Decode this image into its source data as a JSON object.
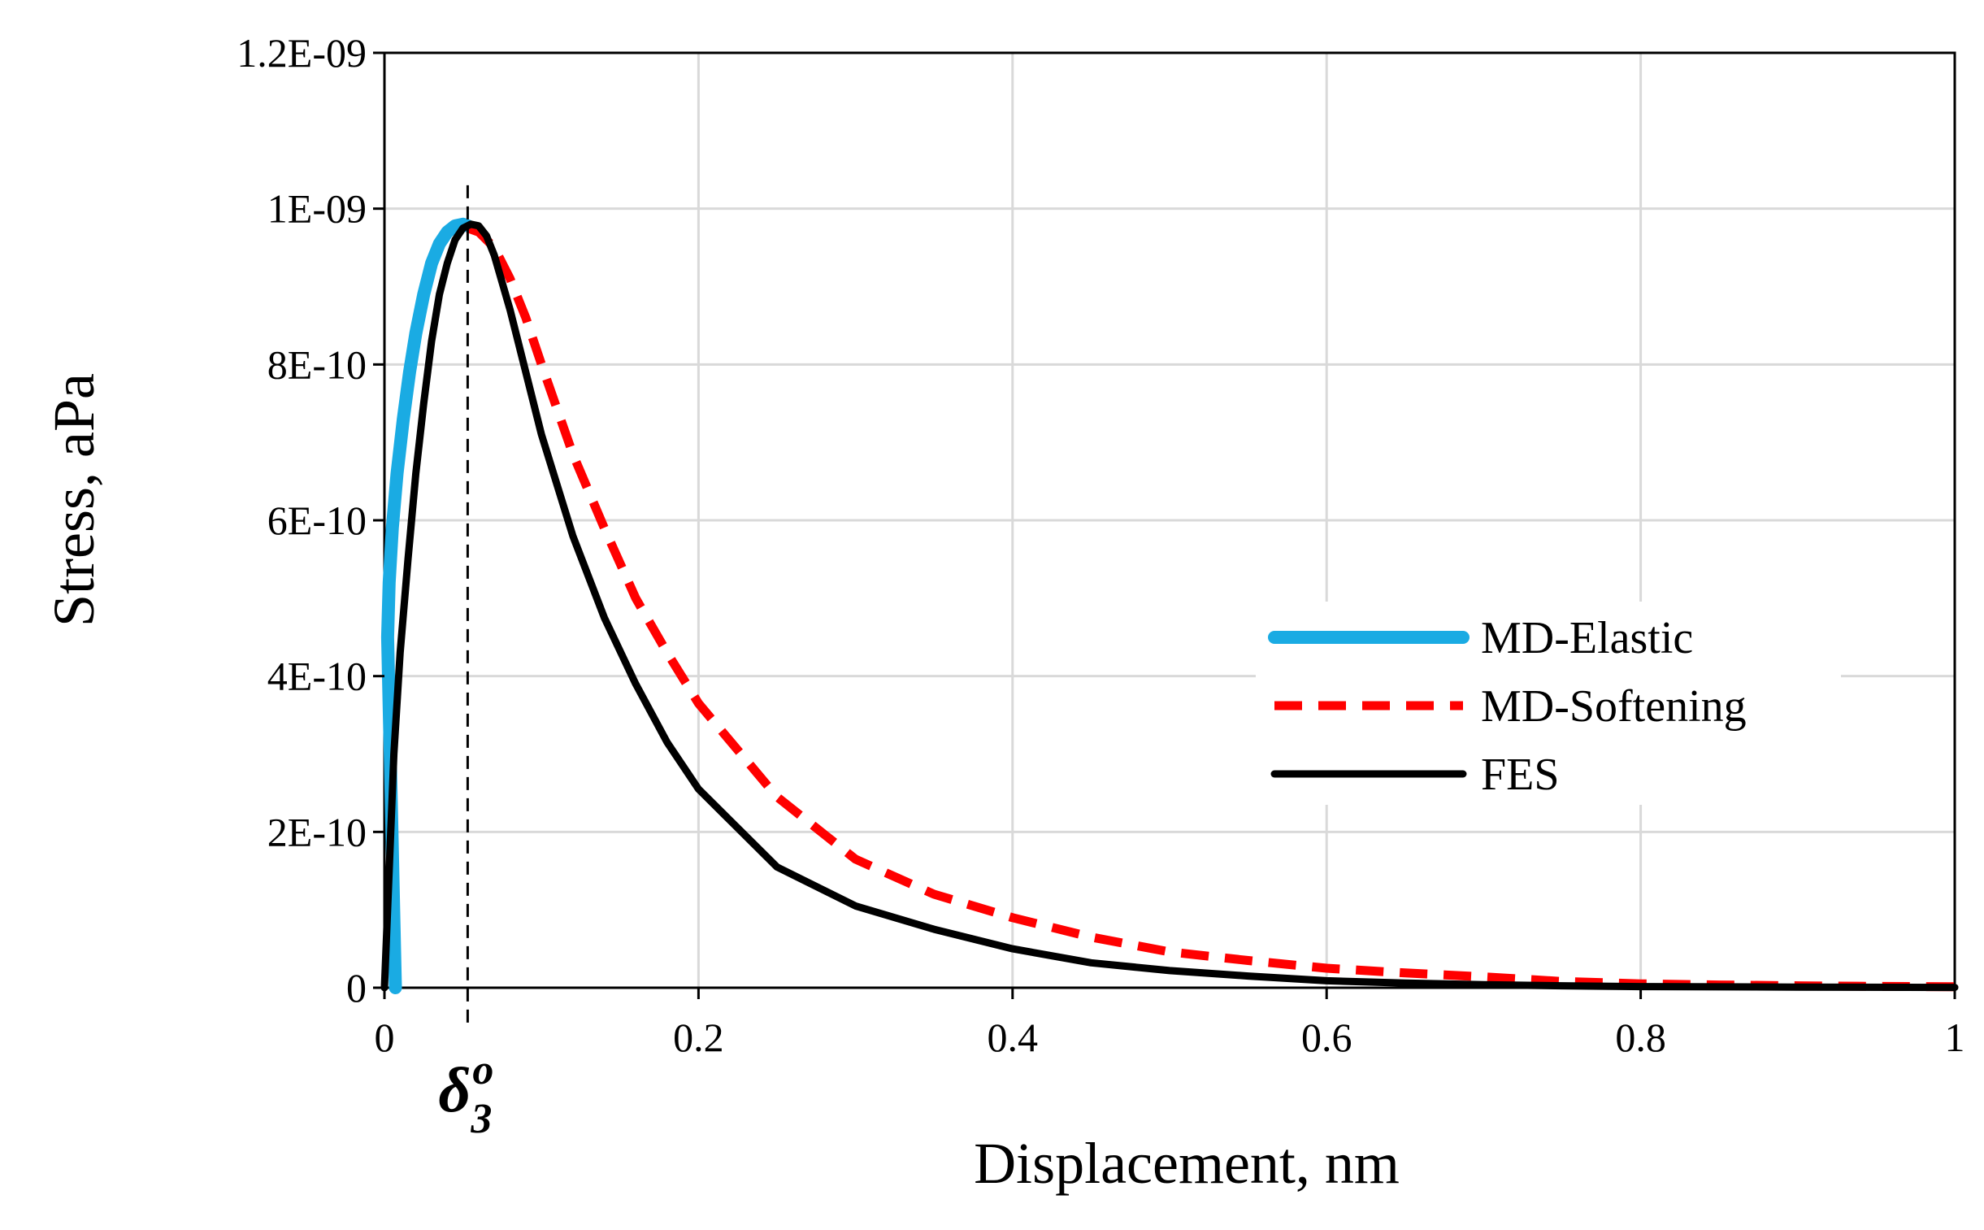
{
  "chart_data": {
    "type": "line",
    "title": "",
    "xlabel": "Displacement, nm",
    "ylabel": "Stress, aPa",
    "xlim": [
      0,
      1
    ],
    "ylim": [
      0,
      1.2e-09
    ],
    "grid": true,
    "legend_position": "right-middle",
    "x_ticks": [
      {
        "value": 0,
        "label": "0"
      },
      {
        "value": 0.2,
        "label": "0.2"
      },
      {
        "value": 0.4,
        "label": "0.4"
      },
      {
        "value": 0.6,
        "label": "0.6"
      },
      {
        "value": 0.8,
        "label": "0.8"
      },
      {
        "value": 1,
        "label": "1"
      }
    ],
    "y_ticks": [
      {
        "value": 0,
        "label": "0"
      },
      {
        "value": 2e-10,
        "label": "2E-10"
      },
      {
        "value": 4e-10,
        "label": "4E-10"
      },
      {
        "value": 6e-10,
        "label": "6E-10"
      },
      {
        "value": 8e-10,
        "label": "8E-10"
      },
      {
        "value": 1e-09,
        "label": "1E-09"
      },
      {
        "value": 1.2e-09,
        "label": "1.2E-09"
      }
    ],
    "annotation": {
      "x": 0.053,
      "label_base": "δ",
      "label_sub": "3",
      "label_sup": "o",
      "style": "dashed vertical line"
    },
    "series": [
      {
        "name": "MD-Elastic",
        "color": "#1aabe3",
        "style": "solid-thick",
        "x": [
          0.007,
          0.002,
          0.003,
          0.005,
          0.008,
          0.012,
          0.016,
          0.02,
          0.025,
          0.03,
          0.035,
          0.04,
          0.045,
          0.05,
          0.053
        ],
        "y": [
          0,
          4.5e-10,
          5.2e-10,
          5.9e-10,
          6.6e-10,
          7.3e-10,
          7.9e-10,
          8.4e-10,
          8.9e-10,
          9.3e-10,
          9.55e-10,
          9.7e-10,
          9.78e-10,
          9.8e-10,
          9.78e-10
        ]
      },
      {
        "name": "MD-Softening",
        "color": "#ff0000",
        "style": "dashed",
        "x": [
          0.053,
          0.06,
          0.07,
          0.08,
          0.09,
          0.1,
          0.12,
          0.14,
          0.16,
          0.18,
          0.2,
          0.25,
          0.3,
          0.35,
          0.4,
          0.45,
          0.5,
          0.55,
          0.6,
          0.65,
          0.7,
          0.75,
          0.8,
          0.85,
          0.9,
          0.95,
          1.0
        ],
        "y": [
          9.75e-10,
          9.7e-10,
          9.5e-10,
          9.1e-10,
          8.6e-10,
          8e-10,
          6.85e-10,
          5.9e-10,
          5e-10,
          4.3e-10,
          3.65e-10,
          2.45e-10,
          1.65e-10,
          1.2e-10,
          9e-11,
          6.5e-11,
          4.6e-11,
          3.5e-11,
          2.5e-11,
          1.9e-11,
          1.4e-11,
          8e-12,
          5e-12,
          3.5e-12,
          2.5e-12,
          1.8e-12,
          1.2e-12
        ]
      },
      {
        "name": "FES",
        "color": "#000000",
        "style": "solid",
        "x": [
          0.0,
          0.003,
          0.006,
          0.01,
          0.015,
          0.02,
          0.025,
          0.03,
          0.035,
          0.04,
          0.045,
          0.05,
          0.055,
          0.06,
          0.065,
          0.07,
          0.08,
          0.09,
          0.1,
          0.12,
          0.14,
          0.16,
          0.18,
          0.2,
          0.25,
          0.3,
          0.35,
          0.4,
          0.45,
          0.5,
          0.55,
          0.6,
          0.65,
          0.7,
          0.75,
          0.8,
          0.9,
          1.0
        ],
        "y": [
          0,
          1.5e-10,
          3e-10,
          4.3e-10,
          5.5e-10,
          6.6e-10,
          7.5e-10,
          8.3e-10,
          8.9e-10,
          9.3e-10,
          9.6e-10,
          9.75e-10,
          9.8e-10,
          9.78e-10,
          9.65e-10,
          9.4e-10,
          8.7e-10,
          7.9e-10,
          7.1e-10,
          5.8e-10,
          4.75e-10,
          3.9e-10,
          3.15e-10,
          2.55e-10,
          1.55e-10,
          1.05e-10,
          7.5e-11,
          5e-11,
          3.2e-11,
          2.2e-11,
          1.5e-11,
          9e-12,
          6e-12,
          4e-12,
          2.5e-12,
          1.5e-12,
          8e-13,
          4e-13
        ]
      }
    ]
  }
}
